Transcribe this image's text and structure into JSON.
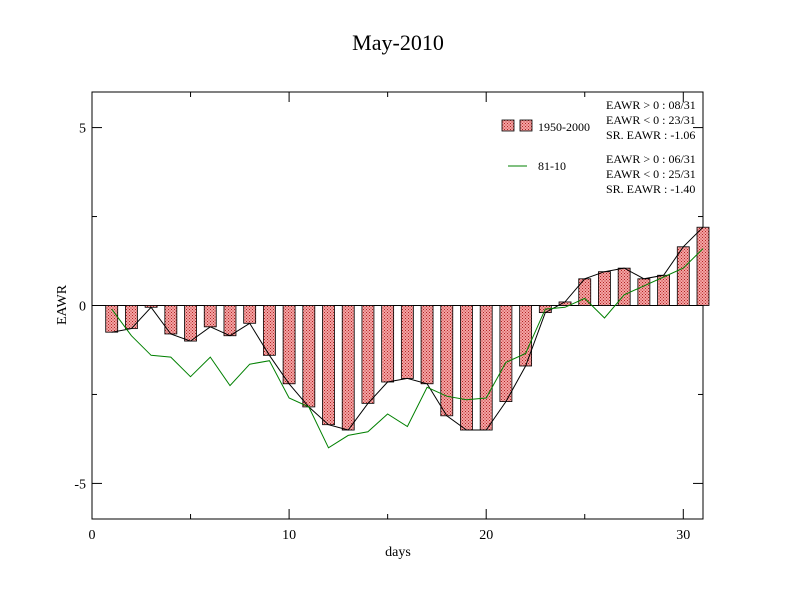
{
  "chart_data": {
    "type": "bar",
    "title": "May-2010",
    "xlabel": "days",
    "ylabel": "EAWR",
    "xlim": [
      0,
      31
    ],
    "ylim": [
      -6,
      6
    ],
    "xticks": [
      0,
      10,
      20,
      30
    ],
    "yticks": [
      -5,
      0,
      5
    ],
    "grid": false,
    "legend_position": "top-right",
    "days": [
      1,
      2,
      3,
      4,
      5,
      6,
      7,
      8,
      9,
      10,
      11,
      12,
      13,
      14,
      15,
      16,
      17,
      18,
      19,
      20,
      21,
      22,
      23,
      24,
      25,
      26,
      27,
      28,
      29,
      30,
      31
    ],
    "series": [
      {
        "name": "1950-2000",
        "kind": "bar",
        "color": "#f08080",
        "values": [
          -0.75,
          -0.65,
          -0.05,
          -0.8,
          -1.0,
          -0.6,
          -0.85,
          -0.5,
          -1.4,
          -2.2,
          -2.85,
          -3.35,
          -3.5,
          -2.75,
          -2.15,
          -2.05,
          -2.2,
          -3.1,
          -3.5,
          -3.5,
          -2.7,
          -1.7,
          -0.2,
          0.1,
          0.75,
          0.95,
          1.05,
          0.75,
          0.85,
          1.65,
          2.2
        ]
      },
      {
        "name": "81-10",
        "kind": "line",
        "color": "#008000",
        "values": [
          -0.1,
          -0.85,
          -1.4,
          -1.45,
          -2.0,
          -1.45,
          -2.25,
          -1.65,
          -1.55,
          -2.6,
          -2.85,
          -4.0,
          -3.65,
          -3.55,
          -3.05,
          -3.4,
          -2.3,
          -2.55,
          -2.65,
          -2.6,
          -1.6,
          -1.35,
          -0.1,
          -0.05,
          0.2,
          -0.35,
          0.3,
          0.55,
          0.8,
          1.05,
          1.6
        ]
      }
    ],
    "stats": [
      {
        "lines": [
          "EAWR > 0 : 08/31",
          "EAWR < 0 : 23/31",
          "SR. EAWR : -1.06"
        ]
      },
      {
        "lines": [
          "EAWR > 0 : 06/31",
          "EAWR < 0 : 25/31",
          "SR. EAWR : -1.40"
        ]
      }
    ]
  }
}
